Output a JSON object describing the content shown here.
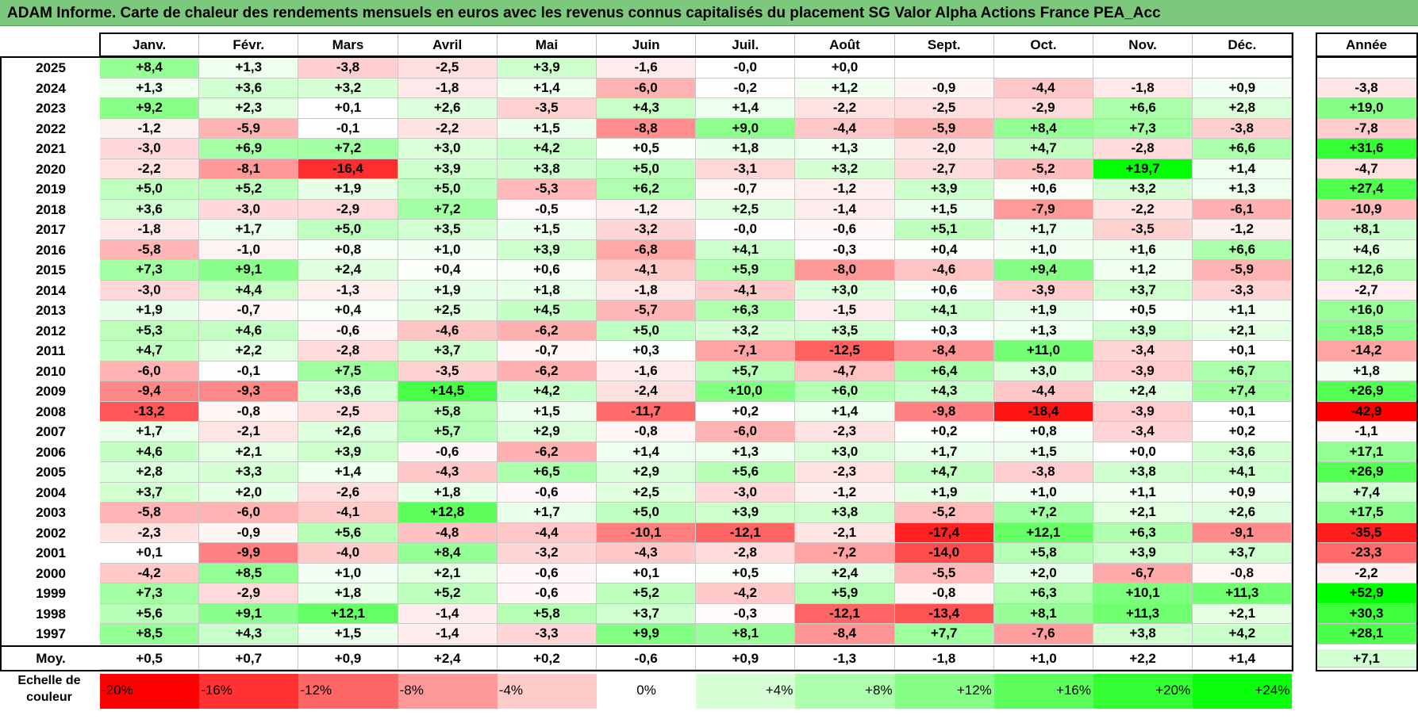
{
  "title": "ADAM Informe. Carte de chaleur des rendements mensuels en euros avec les revenus connus capitalisés du placement SG Valor Alpha Actions France PEA_Acc",
  "chart_data": {
    "type": "heatmap",
    "columns": [
      "Janv.",
      "Févr.",
      "Mars",
      "Avril",
      "Mai",
      "Juin",
      "Juil.",
      "Août",
      "Sept.",
      "Oct.",
      "Nov.",
      "Déc."
    ],
    "annual_label": "Année",
    "rows": [
      {
        "year": "2025",
        "months": [
          "+8,4",
          "+1,3",
          "-3,8",
          "-2,5",
          "+3,9",
          "-1,6",
          "-0,0",
          "+0,0",
          "",
          "",
          "",
          ""
        ],
        "annual": ""
      },
      {
        "year": "2024",
        "months": [
          "+1,3",
          "+3,6",
          "+3,2",
          "-1,8",
          "+1,4",
          "-6,0",
          "-0,2",
          "+1,2",
          "-0,9",
          "-4,4",
          "-1,8",
          "+0,9"
        ],
        "annual": "-3,8"
      },
      {
        "year": "2023",
        "months": [
          "+9,2",
          "+2,3",
          "+0,1",
          "+2,6",
          "-3,5",
          "+4,3",
          "+1,4",
          "-2,2",
          "-2,5",
          "-2,9",
          "+6,6",
          "+2,8"
        ],
        "annual": "+19,0"
      },
      {
        "year": "2022",
        "months": [
          "-1,2",
          "-5,9",
          "-0,1",
          "-2,2",
          "+1,5",
          "-8,8",
          "+9,0",
          "-4,4",
          "-5,9",
          "+8,4",
          "+7,3",
          "-3,8"
        ],
        "annual": "-7,8"
      },
      {
        "year": "2021",
        "months": [
          "-3,0",
          "+6,9",
          "+7,2",
          "+3,0",
          "+4,2",
          "+0,5",
          "+1,8",
          "+1,3",
          "-2,0",
          "+4,7",
          "-2,8",
          "+6,6"
        ],
        "annual": "+31,6"
      },
      {
        "year": "2020",
        "months": [
          "-2,2",
          "-8,1",
          "-16,4",
          "+3,9",
          "+3,8",
          "+5,0",
          "-3,1",
          "+3,2",
          "-2,7",
          "-5,2",
          "+19,7",
          "+1,4"
        ],
        "annual": "-4,7"
      },
      {
        "year": "2019",
        "months": [
          "+5,0",
          "+5,2",
          "+1,9",
          "+5,0",
          "-5,3",
          "+6,2",
          "-0,7",
          "-1,2",
          "+3,9",
          "+0,6",
          "+3,2",
          "+1,3"
        ],
        "annual": "+27,4"
      },
      {
        "year": "2018",
        "months": [
          "+3,6",
          "-3,0",
          "-2,9",
          "+7,2",
          "-0,5",
          "-1,2",
          "+2,5",
          "-1,4",
          "+1,5",
          "-7,9",
          "-2,2",
          "-6,1"
        ],
        "annual": "-10,9"
      },
      {
        "year": "2017",
        "months": [
          "-1,8",
          "+1,7",
          "+5,0",
          "+3,5",
          "+1,5",
          "-3,2",
          "-0,0",
          "-0,6",
          "+5,1",
          "+1,7",
          "-3,5",
          "-1,2"
        ],
        "annual": "+8,1"
      },
      {
        "year": "2016",
        "months": [
          "-5,8",
          "-1,0",
          "+0,8",
          "+1,0",
          "+3,9",
          "-6,8",
          "+4,1",
          "-0,3",
          "+0,4",
          "+1,0",
          "+1,6",
          "+6,6"
        ],
        "annual": "+4,6"
      },
      {
        "year": "2015",
        "months": [
          "+7,3",
          "+9,1",
          "+2,4",
          "+0,4",
          "+0,6",
          "-4,1",
          "+5,9",
          "-8,0",
          "-4,6",
          "+9,4",
          "+1,2",
          "-5,9"
        ],
        "annual": "+12,6"
      },
      {
        "year": "2014",
        "months": [
          "-3,0",
          "+4,4",
          "-1,3",
          "+1,9",
          "+1,8",
          "-1,8",
          "-4,1",
          "+3,0",
          "+0,6",
          "-3,9",
          "+3,7",
          "-3,3"
        ],
        "annual": "-2,7"
      },
      {
        "year": "2013",
        "months": [
          "+1,9",
          "-0,7",
          "+0,4",
          "+2,5",
          "+4,5",
          "-5,7",
          "+6,3",
          "-1,5",
          "+4,1",
          "+1,9",
          "+0,5",
          "+1,1"
        ],
        "annual": "+16,0"
      },
      {
        "year": "2012",
        "months": [
          "+5,3",
          "+4,6",
          "-0,6",
          "-4,6",
          "-6,2",
          "+5,0",
          "+3,2",
          "+3,5",
          "+0,3",
          "+1,3",
          "+3,9",
          "+2,1"
        ],
        "annual": "+18,5"
      },
      {
        "year": "2011",
        "months": [
          "+4,7",
          "+2,2",
          "-2,8",
          "+3,7",
          "-0,7",
          "+0,3",
          "-7,1",
          "-12,5",
          "-8,4",
          "+11,0",
          "-3,4",
          "+0,1"
        ],
        "annual": "-14,2"
      },
      {
        "year": "2010",
        "months": [
          "-6,0",
          "-0,1",
          "+7,5",
          "-3,5",
          "-6,2",
          "-1,6",
          "+5,7",
          "-4,7",
          "+6,4",
          "+3,0",
          "-3,9",
          "+6,7"
        ],
        "annual": "+1,8"
      },
      {
        "year": "2009",
        "months": [
          "-9,4",
          "-9,3",
          "+3,6",
          "+14,5",
          "+4,2",
          "-2,4",
          "+10,0",
          "+6,0",
          "+4,3",
          "-4,4",
          "+2,4",
          "+7,4"
        ],
        "annual": "+26,9"
      },
      {
        "year": "2008",
        "months": [
          "-13,2",
          "-0,8",
          "-2,5",
          "+5,8",
          "+1,5",
          "-11,7",
          "+0,2",
          "+1,4",
          "-9,8",
          "-18,4",
          "-3,9",
          "+0,1"
        ],
        "annual": "-42,9"
      },
      {
        "year": "2007",
        "months": [
          "+1,7",
          "-2,1",
          "+2,6",
          "+5,7",
          "+2,9",
          "-0,8",
          "-6,0",
          "-2,3",
          "+0,2",
          "+0,8",
          "-3,4",
          "+0,2"
        ],
        "annual": "-1,1"
      },
      {
        "year": "2006",
        "months": [
          "+4,6",
          "+2,1",
          "+3,9",
          "-0,6",
          "-6,2",
          "+1,4",
          "+1,3",
          "+3,0",
          "+1,7",
          "+1,5",
          "+0,0",
          "+3,6"
        ],
        "annual": "+17,1"
      },
      {
        "year": "2005",
        "months": [
          "+2,8",
          "+3,3",
          "+1,4",
          "-4,3",
          "+6,5",
          "+2,9",
          "+5,6",
          "-2,3",
          "+4,7",
          "-3,8",
          "+3,8",
          "+4,1"
        ],
        "annual": "+26,9"
      },
      {
        "year": "2004",
        "months": [
          "+3,7",
          "+2,0",
          "-2,6",
          "+1,8",
          "-0,6",
          "+2,5",
          "-3,0",
          "-1,2",
          "+1,9",
          "+1,0",
          "+1,1",
          "+0,9"
        ],
        "annual": "+7,4"
      },
      {
        "year": "2003",
        "months": [
          "-5,8",
          "-6,0",
          "-4,1",
          "+12,8",
          "+1,7",
          "+5,0",
          "+3,9",
          "+3,8",
          "-5,2",
          "+7,2",
          "+2,1",
          "+2,6"
        ],
        "annual": "+17,5"
      },
      {
        "year": "2002",
        "months": [
          "-2,3",
          "-0,9",
          "+5,6",
          "-4,8",
          "-4,4",
          "-10,1",
          "-12,1",
          "-2,1",
          "-17,4",
          "+12,1",
          "+6,3",
          "-9,1"
        ],
        "annual": "-35,5"
      },
      {
        "year": "2001",
        "months": [
          "+0,1",
          "-9,9",
          "-4,0",
          "+8,4",
          "-3,2",
          "-4,3",
          "-2,8",
          "-7,2",
          "-14,0",
          "+5,8",
          "+3,9",
          "+3,7"
        ],
        "annual": "-23,3"
      },
      {
        "year": "2000",
        "months": [
          "-4,2",
          "+8,5",
          "+1,0",
          "+2,1",
          "-0,6",
          "+0,1",
          "+0,5",
          "+2,4",
          "-5,5",
          "+2,0",
          "-6,7",
          "-0,8"
        ],
        "annual": "-2,2"
      },
      {
        "year": "1999",
        "months": [
          "+7,3",
          "-2,9",
          "+1,8",
          "+5,2",
          "-0,6",
          "+5,2",
          "-4,2",
          "+5,9",
          "-0,8",
          "+6,3",
          "+10,1",
          "+11,3"
        ],
        "annual": "+52,9"
      },
      {
        "year": "1998",
        "months": [
          "+5,6",
          "+9,1",
          "+12,1",
          "-1,4",
          "+5,8",
          "+3,7",
          "-0,3",
          "-12,1",
          "-13,4",
          "+8,1",
          "+11,3",
          "+2,1"
        ],
        "annual": "+30,3"
      },
      {
        "year": "1997",
        "months": [
          "+8,5",
          "+4,3",
          "+1,5",
          "-1,4",
          "-3,3",
          "+9,9",
          "+8,1",
          "-8,4",
          "+7,7",
          "-7,6",
          "+3,8",
          "+4,2"
        ],
        "annual": "+28,1"
      }
    ],
    "average": {
      "label": "Moy.",
      "months": [
        "+0,5",
        "+0,7",
        "+0,9",
        "+2,4",
        "+0,2",
        "-0,6",
        "+0,9",
        "-1,3",
        "-1,8",
        "+1,0",
        "+2,2",
        "+1,4"
      ],
      "annual": "+7,1"
    },
    "color_scale": {
      "label_line1": "Echelle de",
      "label_line2": "couleur",
      "stops": [
        {
          "label": "-20%",
          "value": -20,
          "color": "#ff0000"
        },
        {
          "label": "-16%",
          "value": -16,
          "color": "#ff3333"
        },
        {
          "label": "-12%",
          "value": -12,
          "color": "#ff6666"
        },
        {
          "label": "-8%",
          "value": -8,
          "color": "#ff9999"
        },
        {
          "label": "-4%",
          "value": -4,
          "color": "#ffcccc"
        },
        {
          "label": "0%",
          "value": 0,
          "color": "#ffffff"
        },
        {
          "label": "+4%",
          "value": 4,
          "color": "#d6ffd6"
        },
        {
          "label": "+8%",
          "value": 8,
          "color": "#adffad"
        },
        {
          "label": "+12%",
          "value": 12,
          "color": "#85ff85"
        },
        {
          "label": "+16%",
          "value": 16,
          "color": "#5cff5c"
        },
        {
          "label": "+20%",
          "value": 20,
          "color": "#33ff33"
        },
        {
          "label": "+24%",
          "value": 24,
          "color": "#0aff0a"
        }
      ]
    },
    "colors": {
      "title_bar": "#7cc97d",
      "negative_max": "#ff0000",
      "positive_max": "#00ff00",
      "neutral": "#ffffff"
    }
  }
}
